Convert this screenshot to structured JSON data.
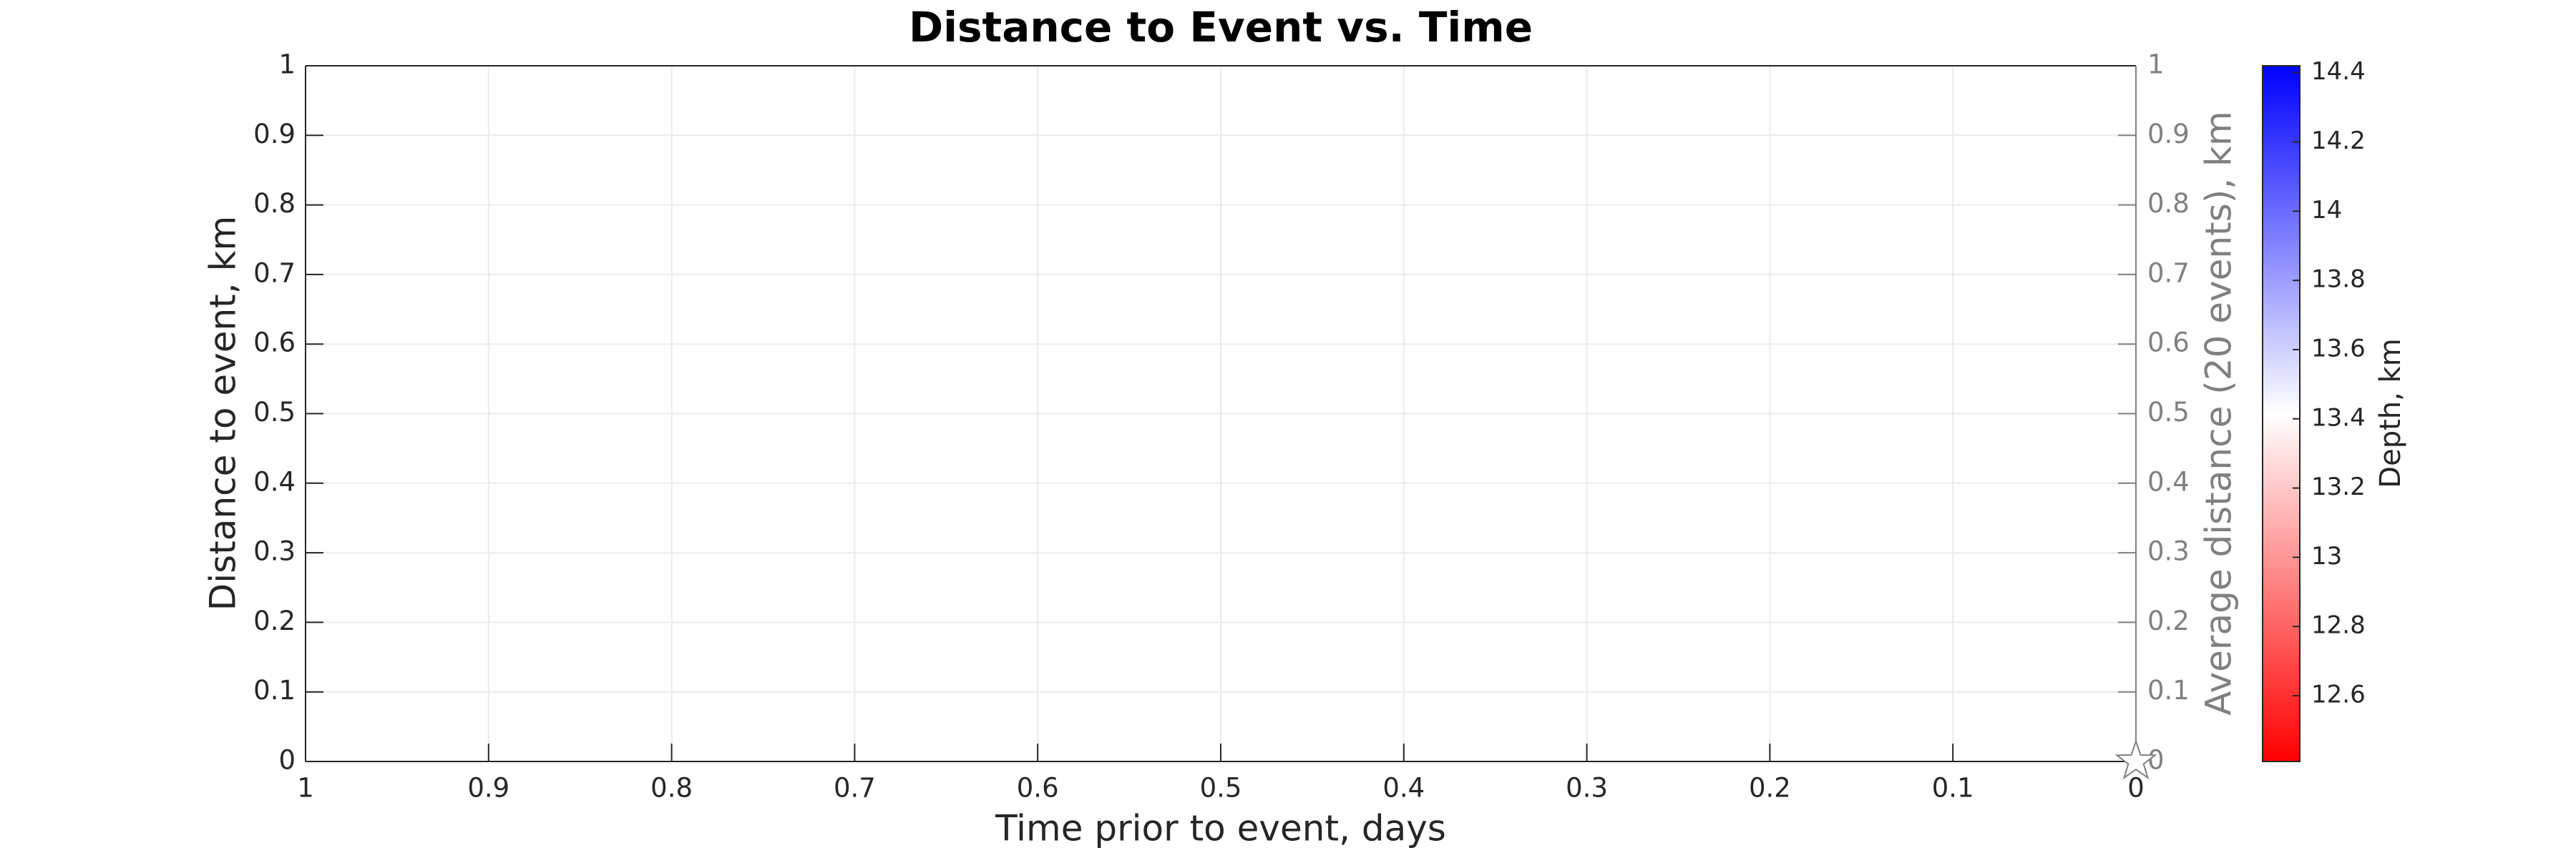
{
  "chart_data": {
    "type": "scatter",
    "title": "Distance to Event vs. Time",
    "xlabel": "Time prior to event, days",
    "ylabel": "Distance to event, km",
    "y2label": "Average distance (20 events), km",
    "x": [
      0
    ],
    "values": [
      0
    ],
    "marker": "star",
    "xlim": [
      1,
      0
    ],
    "xticks": [
      1,
      0.9,
      0.8,
      0.7,
      0.6,
      0.5,
      0.4,
      0.3,
      0.2,
      0.1,
      0
    ],
    "ylim": [
      0,
      1
    ],
    "yticks": [
      0,
      0.1,
      0.2,
      0.3,
      0.4,
      0.5,
      0.6,
      0.7,
      0.8,
      0.9,
      1
    ],
    "y2lim": [
      0,
      1
    ],
    "y2ticks": [
      0,
      0.1,
      0.2,
      0.3,
      0.4,
      0.5,
      0.6,
      0.7,
      0.8,
      0.9,
      1
    ],
    "grid": true,
    "colorbar": {
      "label": "Depth, km",
      "clim": [
        12.41,
        14.42
      ],
      "ticks": [
        12.6,
        12.8,
        13,
        13.2,
        13.4,
        13.6,
        13.8,
        14,
        14.2,
        14.4
      ]
    }
  }
}
